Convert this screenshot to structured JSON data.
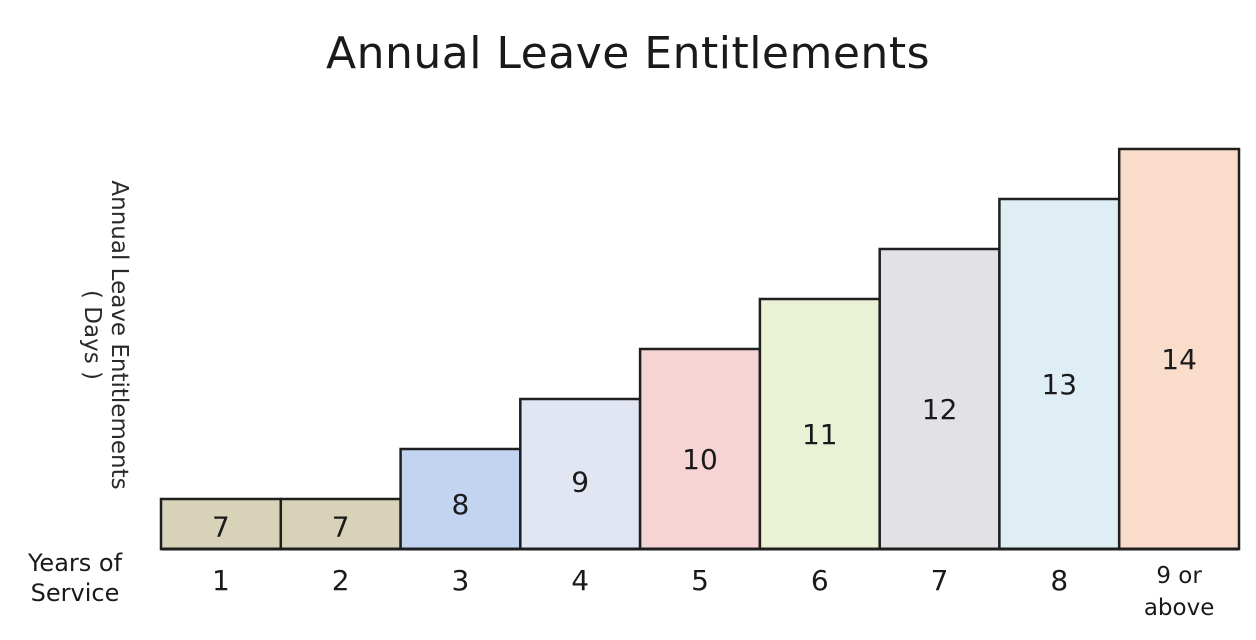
{
  "chart_data": {
    "type": "bar",
    "title": "Annual Leave Entitlements",
    "ylabel": [
      "Annual Leave Entitlements",
      "( Days )"
    ],
    "xlabel": [
      "Years of",
      "Service"
    ],
    "categories": [
      "1",
      "2",
      "3",
      "4",
      "5",
      "6",
      "7",
      "8",
      "9 or above"
    ],
    "category_lines": [
      [
        "1"
      ],
      [
        "2"
      ],
      [
        "3"
      ],
      [
        "4"
      ],
      [
        "5"
      ],
      [
        "6"
      ],
      [
        "7"
      ],
      [
        "8"
      ],
      [
        "9 or",
        "above"
      ]
    ],
    "values": [
      7,
      7,
      8,
      9,
      10,
      11,
      12,
      13,
      14
    ],
    "data_labels": [
      "7",
      "7",
      "8",
      "9",
      "10",
      "11",
      "12",
      "13",
      "14"
    ],
    "colors": [
      "#d8d3b8",
      "#d8d3b8",
      "#c3d4f1",
      "#e2e5f2",
      "#f6d4d4",
      "#eaf2d6",
      "#e2e2e6",
      "#dfedf5",
      "#fadccb"
    ],
    "ylim": [
      6,
      14.9
    ],
    "grid": false,
    "legend": "none"
  }
}
